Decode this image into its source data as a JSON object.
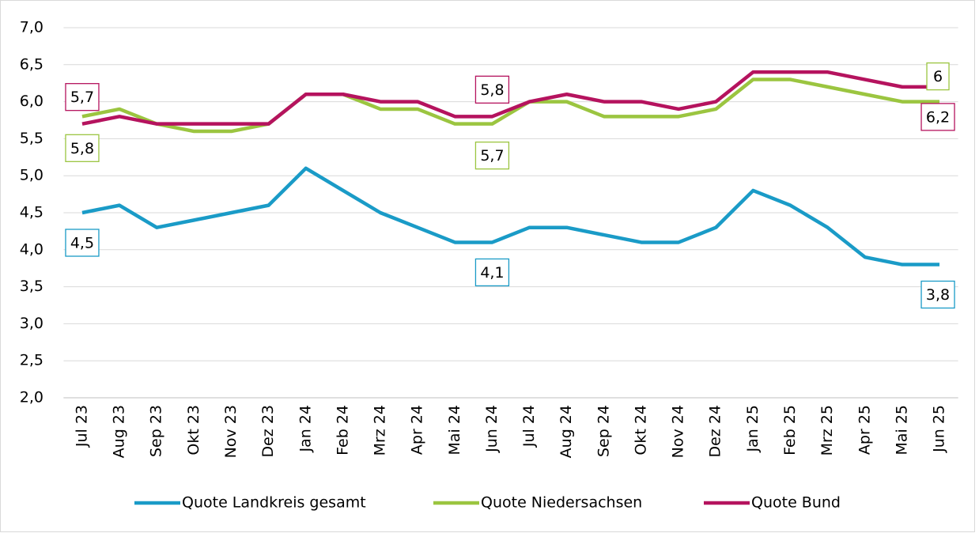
{
  "chart_data": {
    "type": "line",
    "categories": [
      "Jul 23",
      "Aug 23",
      "Sep 23",
      "Okt 23",
      "Nov 23",
      "Dez 23",
      "Jan 24",
      "Feb 24",
      "Mrz 24",
      "Apr 24",
      "Mai 24",
      "Jun 24",
      "Jul 24",
      "Aug 24",
      "Sep 24",
      "Okt 24",
      "Nov 24",
      "Dez 24",
      "Jan 25",
      "Feb 25",
      "Mrz 25",
      "Apr 25",
      "Mai 25",
      "Jun 25"
    ],
    "series": [
      {
        "name": "Quote Landkreis gesamt",
        "color": "#1a9bc7",
        "values": [
          4.5,
          4.6,
          4.3,
          4.4,
          4.5,
          4.6,
          5.1,
          4.8,
          4.5,
          4.3,
          4.1,
          4.1,
          4.3,
          4.3,
          4.2,
          4.1,
          4.1,
          4.3,
          4.8,
          4.6,
          4.3,
          3.9,
          3.8,
          3.8
        ],
        "value_labels": [
          "4,5",
          null,
          null,
          null,
          null,
          null,
          null,
          null,
          null,
          null,
          null,
          "4,1",
          null,
          null,
          null,
          null,
          null,
          null,
          null,
          null,
          null,
          null,
          null,
          "3,8"
        ]
      },
      {
        "name": "Quote Niedersachsen",
        "color": "#9bc540",
        "values": [
          5.8,
          5.9,
          5.7,
          5.6,
          5.6,
          5.7,
          6.1,
          6.1,
          5.9,
          5.9,
          5.7,
          5.7,
          6.0,
          6.0,
          5.8,
          5.8,
          5.8,
          5.9,
          6.3,
          6.3,
          6.2,
          6.1,
          6.0,
          6.0
        ],
        "value_labels": [
          "5,8",
          null,
          null,
          null,
          null,
          null,
          null,
          null,
          null,
          null,
          null,
          "5,7",
          null,
          null,
          null,
          null,
          null,
          null,
          null,
          null,
          null,
          null,
          null,
          "6"
        ]
      },
      {
        "name": "Quote Bund",
        "color": "#b5135e",
        "values": [
          5.7,
          5.8,
          5.7,
          5.7,
          5.7,
          5.7,
          6.1,
          6.1,
          6.0,
          6.0,
          5.8,
          5.8,
          6.0,
          6.1,
          6.0,
          6.0,
          5.9,
          6.0,
          6.4,
          6.4,
          6.4,
          6.3,
          6.2,
          6.2
        ],
        "value_labels": [
          "5,7",
          null,
          null,
          null,
          null,
          null,
          null,
          null,
          null,
          null,
          null,
          "5,8",
          null,
          null,
          null,
          null,
          null,
          null,
          null,
          null,
          null,
          null,
          null,
          "6,2"
        ]
      }
    ],
    "ylim": [
      2,
      7
    ],
    "yticks": [
      {
        "value": 2,
        "label": "2,0"
      },
      {
        "value": 2.5,
        "label": "2,5"
      },
      {
        "value": 3,
        "label": "3,0"
      },
      {
        "value": 3.5,
        "label": "3,5"
      },
      {
        "value": 4,
        "label": "4,0"
      },
      {
        "value": 4.5,
        "label": "4,5"
      },
      {
        "value": 5,
        "label": "5,0"
      },
      {
        "value": 5.5,
        "label": "5,5"
      },
      {
        "value": 6,
        "label": "6,0"
      },
      {
        "value": 6.5,
        "label": "6,5"
      },
      {
        "value": 7,
        "label": "7,0"
      }
    ],
    "grid": true,
    "legend": "bottom"
  }
}
